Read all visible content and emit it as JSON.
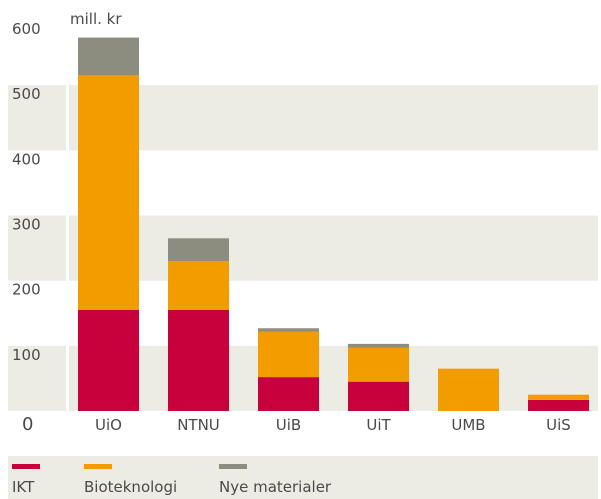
{
  "chart_data": {
    "type": "bar",
    "stacked": true,
    "unit_label": "mill. kr",
    "categories": [
      "UiO",
      "NTNU",
      "UiB",
      "UiT",
      "UMB",
      "UiS"
    ],
    "series": [
      {
        "name": "IKT",
        "color": "#c8003c",
        "values": [
          155,
          155,
          52,
          45,
          0,
          17
        ]
      },
      {
        "name": "Bioteknologi",
        "color": "#f39c00",
        "values": [
          360,
          75,
          70,
          52,
          65,
          8
        ]
      },
      {
        "name": "Nye materialer",
        "color": "#8c8c7f",
        "values": [
          58,
          35,
          5,
          6,
          0,
          0
        ]
      }
    ],
    "yticks": [
      0,
      100,
      200,
      300,
      400,
      500,
      600
    ],
    "ylim": [
      0,
      600
    ],
    "grid": "alternating horizontal bands",
    "legend": "bottom"
  }
}
